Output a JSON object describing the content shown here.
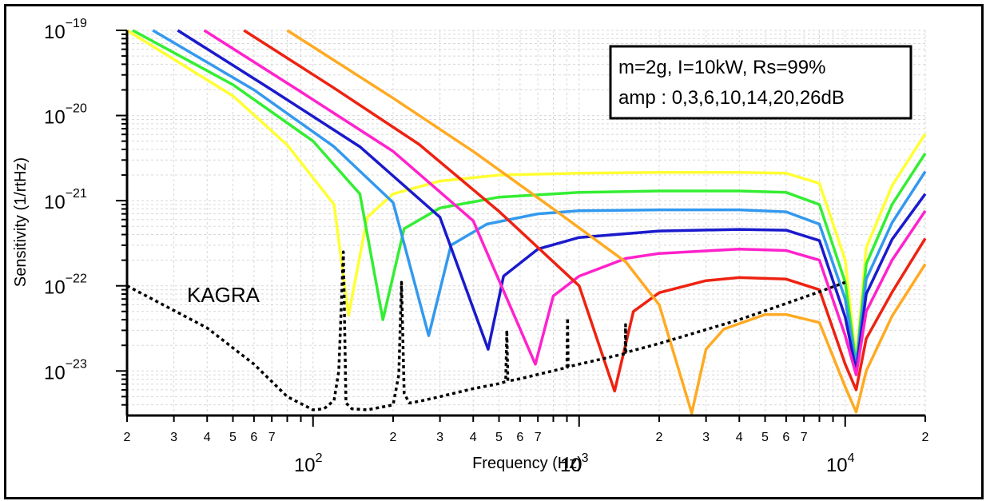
{
  "chart_data": {
    "type": "line",
    "xscale": "log",
    "yscale": "log",
    "xlim": [
      20,
      20000
    ],
    "ylim": [
      3e-24,
      1e-19
    ],
    "xlabel": "Frequency (Hz)",
    "ylabel": "Sensitivity (1/rtHz)",
    "grid": true,
    "legend_box": {
      "line1": "m=2g, I=10kW, Rs=99%",
      "line2": "amp : 0,3,6,10,14,20,26dB"
    },
    "annotation": "KAGRA",
    "x_minor_labels": [
      "2",
      "3",
      "4",
      "5",
      "6",
      "7",
      "2",
      "3",
      "4",
      "5",
      "6",
      "7",
      "2",
      "3",
      "4",
      "5",
      "6",
      "7",
      "2"
    ],
    "x_minor_values": [
      20,
      30,
      40,
      50,
      60,
      70,
      200,
      300,
      400,
      500,
      600,
      700,
      2000,
      3000,
      4000,
      5000,
      6000,
      7000,
      20000
    ],
    "x_decades": [
      {
        "value": 100,
        "base": "10",
        "exp": "2"
      },
      {
        "value": 1000,
        "base": "10",
        "exp": "3"
      },
      {
        "value": 10000,
        "base": "10",
        "exp": "4"
      }
    ],
    "y_decades": [
      {
        "value": 1e-19,
        "base": "10",
        "exp": "−19"
      },
      {
        "value": 1e-20,
        "base": "10",
        "exp": "−20"
      },
      {
        "value": 1e-21,
        "base": "10",
        "exp": "−21"
      },
      {
        "value": 1e-22,
        "base": "10",
        "exp": "−22"
      },
      {
        "value": 1e-23,
        "base": "10",
        "exp": "−23"
      }
    ],
    "series": [
      {
        "amp_db": 0,
        "color": "#ffff33",
        "x": [
          20,
          50,
          80,
          120,
          136,
          160,
          200,
          300,
          500,
          1000,
          2000,
          4000,
          6000,
          8000,
          10000,
          11000,
          12000,
          15000,
          20000
        ],
        "y": [
          1e-19,
          1.7e-20,
          4.5e-21,
          9e-22,
          4.5e-23,
          6.4e-22,
          1.2e-21,
          1.7e-21,
          2e-21,
          2.1e-21,
          2.15e-21,
          2.15e-21,
          2.1e-21,
          1.6e-21,
          2e-22,
          1.3e-23,
          2.8e-22,
          1.5e-21,
          6.1e-21
        ]
      },
      {
        "amp_db": 3,
        "color": "#33ee33",
        "x": [
          21,
          50,
          100,
          150,
          183,
          220,
          300,
          500,
          1000,
          2000,
          4000,
          6000,
          8000,
          10000,
          11000,
          12000,
          15000,
          20000
        ],
        "y": [
          1e-19,
          2.3e-20,
          5e-21,
          1.2e-21,
          4e-23,
          4.7e-22,
          8.2e-22,
          1.1e-21,
          1.25e-21,
          1.3e-21,
          1.3e-21,
          1.25e-21,
          9e-22,
          1.1e-22,
          1.2e-23,
          1.8e-22,
          9e-22,
          3.6e-21
        ]
      },
      {
        "amp_db": 6,
        "color": "#3399ee",
        "x": [
          25,
          60,
          120,
          200,
          272,
          330,
          450,
          700,
          1000,
          2000,
          4000,
          6000,
          8000,
          10000,
          11000,
          12000,
          15000,
          20000
        ],
        "y": [
          1e-19,
          2e-20,
          4.3e-21,
          9.5e-22,
          2.6e-23,
          3e-22,
          5.3e-22,
          7e-22,
          7.6e-22,
          7.8e-22,
          7.8e-22,
          7.4e-22,
          5.3e-22,
          7e-23,
          1.1e-23,
          1.2e-22,
          5.5e-22,
          2.2e-21
        ]
      },
      {
        "amp_db": 10,
        "color": "#1a1acc",
        "x": [
          31,
          70,
          150,
          300,
          455,
          520,
          700,
          1000,
          2000,
          4000,
          6000,
          8000,
          10000,
          11000,
          12000,
          15000,
          20000
        ],
        "y": [
          1e-19,
          2e-20,
          4.3e-21,
          6.4e-22,
          1.8e-23,
          1.3e-22,
          2.7e-22,
          3.7e-22,
          4.4e-22,
          4.6e-22,
          4.5e-22,
          3.4e-22,
          4.3e-23,
          1e-23,
          8e-23,
          3.5e-22,
          1.2e-21
        ]
      },
      {
        "amp_db": 14,
        "color": "#ff22cc",
        "x": [
          39,
          90,
          200,
          400,
          685,
          800,
          1000,
          1500,
          2000,
          4000,
          6000,
          8000,
          10000,
          11000,
          12000,
          15000,
          20000
        ],
        "y": [
          1e-19,
          1.9e-20,
          3.8e-21,
          5.8e-22,
          1.2e-23,
          7.6e-23,
          1.3e-22,
          2.1e-22,
          2.4e-22,
          2.7e-22,
          2.6e-22,
          2e-22,
          2.6e-23,
          9e-24,
          5e-23,
          2e-22,
          7.6e-22
        ]
      },
      {
        "amp_db": 20,
        "color": "#ee2211",
        "x": [
          55,
          120,
          250,
          500,
          1000,
          1360,
          1600,
          2000,
          3000,
          4000,
          6000,
          8000,
          10000,
          11000,
          12000,
          15000,
          20000
        ],
        "y": [
          1e-19,
          2.1e-20,
          4.6e-21,
          7.5e-22,
          1e-22,
          5.8e-24,
          5e-23,
          8.3e-23,
          1.15e-22,
          1.25e-22,
          1.2e-22,
          9e-23,
          1.2e-23,
          6e-24,
          2.4e-23,
          8.4e-23,
          3.6e-22
        ]
      },
      {
        "amp_db": 26,
        "color": "#ffaa22",
        "x": [
          80,
          200,
          400,
          800,
          1500,
          2000,
          2650,
          3000,
          3500,
          5000,
          6000,
          8000,
          10000,
          11000,
          12000,
          15000,
          20000
        ],
        "y": [
          1e-19,
          1.6e-20,
          3.8e-21,
          8e-22,
          1.9e-22,
          6e-23,
          3.2e-24,
          1.8e-23,
          3.1e-23,
          4.6e-23,
          4.6e-23,
          3.7e-23,
          6.5e-24,
          3.3e-24,
          1e-23,
          4.4e-23,
          1.8e-22
        ]
      },
      {
        "name": "KAGRA",
        "color": "#000000",
        "dashed": true,
        "x": [
          20,
          40,
          60,
          80,
          100,
          110,
          120,
          125,
          130,
          133,
          140,
          160,
          200,
          210,
          215,
          220,
          230,
          250,
          300,
          400,
          500,
          530,
          535,
          540,
          600,
          900,
          905,
          910,
          1000,
          1490,
          1495,
          1500,
          2000,
          4000,
          6000,
          8000,
          10000
        ],
        "y": [
          1e-22,
          3.2e-23,
          1.2e-23,
          5e-24,
          3.5e-24,
          3.6e-24,
          4.5e-24,
          1e-23,
          2.5e-22,
          4.2e-24,
          3.6e-24,
          3.5e-24,
          4e-24,
          9e-24,
          1.1e-22,
          5.5e-24,
          4.2e-24,
          4.4e-24,
          5e-24,
          6.2e-24,
          7.1e-24,
          7.5e-24,
          3e-23,
          7.6e-24,
          8.1e-24,
          1.1e-23,
          4.2e-23,
          1.12e-23,
          1.2e-23,
          1.6e-23,
          3.5e-23,
          1.65e-23,
          2.1e-23,
          4e-23,
          6.2e-23,
          8.5e-23,
          1.1e-22
        ]
      }
    ]
  }
}
